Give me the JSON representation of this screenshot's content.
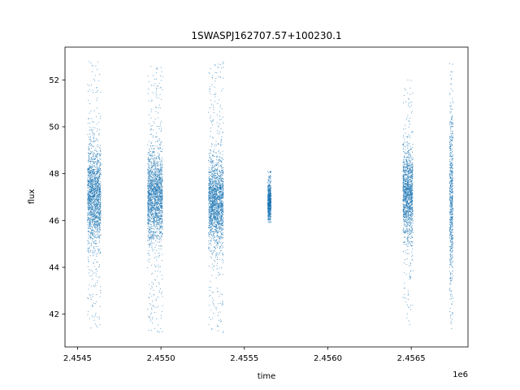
{
  "chart_data": {
    "type": "scatter",
    "title": "1SWASPJ162707.57+100230.1",
    "xlabel": "time",
    "ylabel": "flux",
    "x_offset_label": "1e6",
    "xlim": [
      2454425,
      2456840
    ],
    "ylim": [
      40.6,
      53.4
    ],
    "x_ticks": [
      2454500,
      2455000,
      2455500,
      2456000,
      2456500
    ],
    "x_tick_labels": [
      "2.4545",
      "2.4550",
      "2.4555",
      "2.4560",
      "2.4565"
    ],
    "y_ticks": [
      42,
      44,
      46,
      48,
      50,
      52
    ],
    "y_tick_labels": [
      "42",
      "44",
      "46",
      "48",
      "50",
      "52"
    ],
    "grid": false,
    "marker_color": "#1f77b4",
    "seasons": [
      {
        "x_start": 2454560,
        "x_end": 2454640,
        "y_center": 47.0,
        "y_core_halfwidth": 1.8,
        "y_min": 41.4,
        "y_max": 52.8
      },
      {
        "x_start": 2454920,
        "x_end": 2455010,
        "y_center": 47.0,
        "y_core_halfwidth": 1.6,
        "y_min": 41.2,
        "y_max": 52.6
      },
      {
        "x_start": 2455285,
        "x_end": 2455375,
        "y_center": 46.8,
        "y_core_halfwidth": 1.5,
        "y_min": 41.2,
        "y_max": 52.8
      },
      {
        "x_start": 2455640,
        "x_end": 2455660,
        "y_center": 46.8,
        "y_core_halfwidth": 0.6,
        "y_min": 45.9,
        "y_max": 48.1
      },
      {
        "x_start": 2456450,
        "x_end": 2456510,
        "y_center": 47.2,
        "y_core_halfwidth": 1.6,
        "y_min": 41.5,
        "y_max": 52.0
      },
      {
        "x_start": 2456730,
        "x_end": 2456750,
        "y_center": 47.0,
        "y_core_halfwidth": 3.0,
        "y_min": 41.3,
        "y_max": 52.8
      }
    ]
  }
}
